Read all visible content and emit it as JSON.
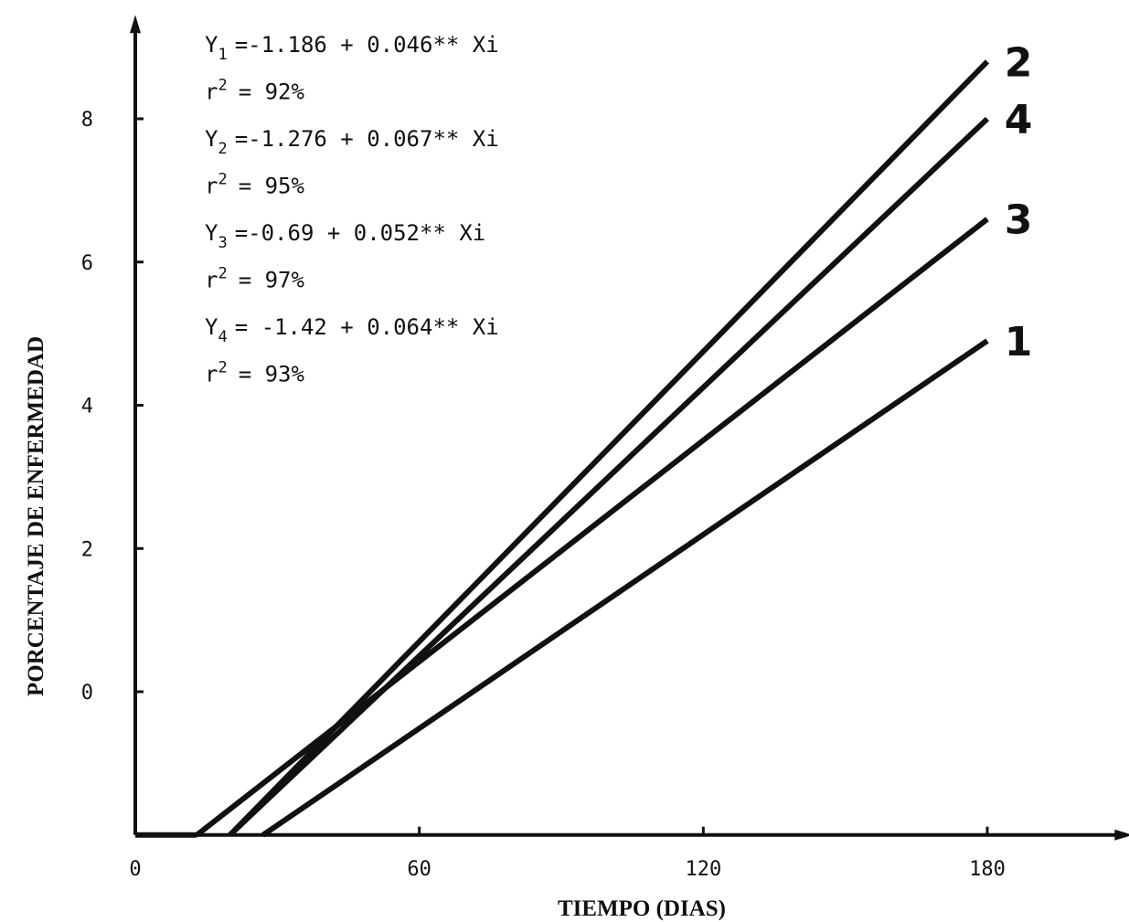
{
  "chart_data": {
    "type": "line",
    "xlabel": "TIEMPO (DIAS)",
    "ylabel": "PORCENTAJE DE ENFERMEDAD",
    "x_ticks": [
      0,
      60,
      120,
      180
    ],
    "y_ticks": [
      0,
      2,
      4,
      6,
      8
    ],
    "xlim": [
      0,
      210
    ],
    "ylim": [
      -2,
      9.4
    ],
    "x_ticks_text": [
      "0",
      "60",
      "120",
      "180"
    ],
    "y_ticks_text": [
      "0",
      "2",
      "4",
      "6",
      "8"
    ],
    "series": [
      {
        "name": "1",
        "x": [
          27,
          180
        ],
        "y": [
          -2,
          4.9
        ]
      },
      {
        "name": "2",
        "x": [
          20,
          180
        ],
        "y": [
          -2,
          8.8
        ]
      },
      {
        "name": "3",
        "x": [
          13,
          180
        ],
        "y": [
          -2,
          6.6
        ]
      },
      {
        "name": "4",
        "x": [
          20,
          180
        ],
        "y": [
          -2,
          8.0
        ]
      }
    ],
    "baseline": {
      "x": [
        0,
        13
      ],
      "y": [
        -2,
        -2
      ]
    },
    "equations": [
      {
        "y_prefix": "Y",
        "sub": "1",
        "text": "=-1.186 + 0.046** Xi",
        "r_prefix": "r",
        "sup": "2",
        "r_text": "= 92%"
      },
      {
        "y_prefix": "Y",
        "sub": "2",
        "text": "=-1.276 + 0.067** Xi",
        "r_prefix": "r",
        "sup": "2",
        "r_text": "= 95%"
      },
      {
        "y_prefix": "Y",
        "sub": "3",
        "text": "=-0.69 + 0.052** Xi",
        "r_prefix": "r",
        "sup": "2",
        "r_text": "= 97%"
      },
      {
        "y_prefix": "Y",
        "sub": "4",
        "text": "= -1.42 + 0.064** Xi",
        "r_prefix": "r",
        "sup": "2",
        "r_text": "= 93%"
      }
    ],
    "grid": false,
    "line_color": "#111111"
  }
}
